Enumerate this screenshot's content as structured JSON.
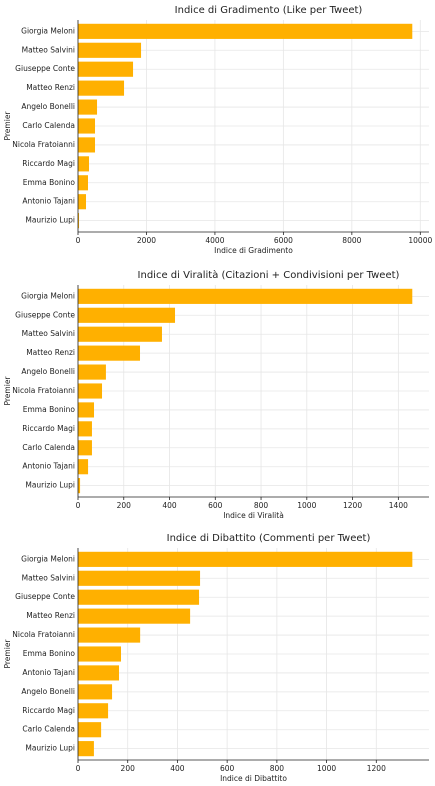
{
  "chart_data": [
    {
      "type": "bar",
      "orientation": "horizontal",
      "title": "Indice di Gradimento (Like per Tweet)",
      "xlabel": "Indice di Gradimento",
      "ylabel": "Premier",
      "categories": [
        "Giorgia Meloni",
        "Matteo Salvini",
        "Giuseppe Conte",
        "Matteo Renzi",
        "Angelo Bonelli",
        "Carlo Calenda",
        "Nicola Fratoianni",
        "Riccardo Magi",
        "Emma Bonino",
        "Antonio Tajani",
        "Maurizio Lupi"
      ],
      "values": [
        9766,
        1842,
        1608,
        1345,
        556,
        497,
        497,
        322,
        292,
        234,
        30
      ],
      "color": "#ffb000",
      "xlim": [
        0,
        10254
      ],
      "xticks": [
        0,
        2000,
        4000,
        6000,
        8000,
        10000
      ],
      "grid": true
    },
    {
      "type": "bar",
      "orientation": "horizontal",
      "title": "Indice di Viralità (Citazioni + Condivisioni per Tweet)",
      "xlabel": "Indice di Viralità",
      "ylabel": "Premier",
      "categories": [
        "Giorgia Meloni",
        "Giuseppe Conte",
        "Matteo Salvini",
        "Matteo Renzi",
        "Angelo Bonelli",
        "Nicola Fratoianni",
        "Emma Bonino",
        "Riccardo Magi",
        "Carlo Calenda",
        "Antonio Tajani",
        "Maurizio Lupi"
      ],
      "values": [
        1461,
        424,
        367,
        271,
        122,
        105,
        70,
        61,
        61,
        44,
        9
      ],
      "color": "#ffb000",
      "xlim": [
        0,
        1534
      ],
      "xticks": [
        0,
        200,
        400,
        600,
        800,
        1000,
        1200,
        1400
      ],
      "grid": true
    },
    {
      "type": "bar",
      "orientation": "horizontal",
      "title": "Indice di Dibattito (Commenti per Tweet)",
      "xlabel": "Indice di Dibattito",
      "ylabel": "Premier",
      "categories": [
        "Giorgia Meloni",
        "Matteo Salvini",
        "Giuseppe Conte",
        "Matteo Renzi",
        "Nicola Fratoianni",
        "Emma Bonino",
        "Antonio Tajani",
        "Angelo Bonelli",
        "Riccardo Magi",
        "Carlo Calenda",
        "Maurizio Lupi"
      ],
      "values": [
        1345,
        491,
        487,
        451,
        250,
        173,
        165,
        137,
        121,
        93,
        64
      ],
      "color": "#ffb000",
      "xlim": [
        0,
        1412
      ],
      "xticks": [
        0,
        200,
        400,
        600,
        800,
        1000,
        1200
      ],
      "grid": true
    }
  ]
}
